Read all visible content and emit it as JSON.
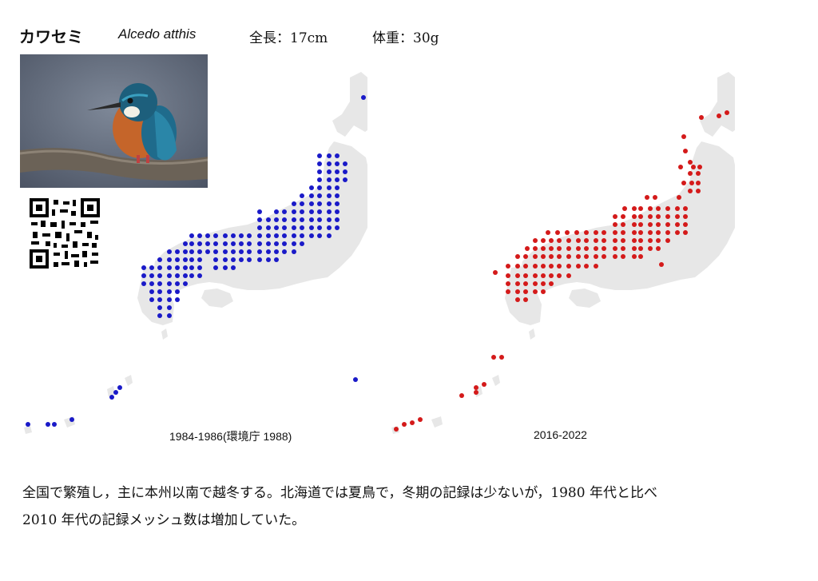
{
  "header": {
    "name_jp": "カワセミ",
    "scientific_name": "Alcedo atthis",
    "length": "全長：17cm",
    "weight": "体重：30g"
  },
  "photo": {
    "icon": "kingfisher-photo"
  },
  "qr": {
    "icon": "qr-code-icon"
  },
  "maps": [
    {
      "period": "1984-1986(環境庁 1988)",
      "dot_color": "#1a1ac8"
    },
    {
      "period": "2016-2022",
      "dot_color": "#d41a1a"
    }
  ],
  "description": {
    "line1": "全国で繁殖し，主に本州以南で越冬する。北海道では夏鳥で，冬期の記録は少ないが，1980 年代と比べ",
    "line2": "2010 年代の記録メッシュ数は増加していた。"
  }
}
